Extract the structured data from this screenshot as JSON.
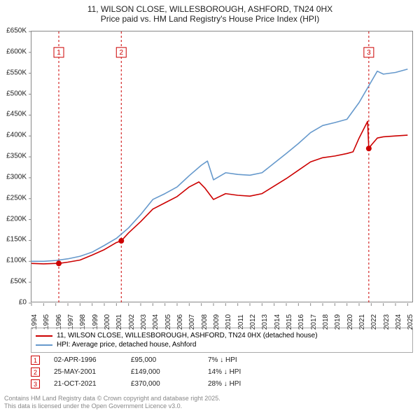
{
  "title": {
    "line1": "11, WILSON CLOSE, WILLESBOROUGH, ASHFORD, TN24 0HX",
    "line2": "Price paid vs. HM Land Registry's House Price Index (HPI)"
  },
  "chart": {
    "type": "line",
    "ylim": [
      0,
      650000
    ],
    "ytick_step": 50000,
    "yticks": [
      "£0",
      "£50K",
      "£100K",
      "£150K",
      "£200K",
      "£250K",
      "£300K",
      "£350K",
      "£400K",
      "£450K",
      "£500K",
      "£550K",
      "£600K",
      "£650K"
    ],
    "xlim": [
      1994,
      2025.5
    ],
    "xticks": [
      1994,
      1995,
      1996,
      1997,
      1998,
      1999,
      2000,
      2001,
      2002,
      2003,
      2004,
      2005,
      2006,
      2007,
      2008,
      2009,
      2010,
      2011,
      2012,
      2013,
      2014,
      2015,
      2016,
      2017,
      2018,
      2019,
      2020,
      2021,
      2022,
      2023,
      2024,
      2025
    ],
    "background_color": "#ffffff",
    "border_color": "#888888",
    "axis_font_size": 10,
    "series": [
      {
        "name": "price_paid",
        "label": "11, WILSON CLOSE, WILLESBOROUGH, ASHFORD, TN24 0HX (detached house)",
        "color": "#cc0000",
        "line_width": 1.6,
        "data": [
          [
            1994,
            95000
          ],
          [
            1995,
            94000
          ],
          [
            1996,
            95000
          ],
          [
            1996.25,
            95000
          ],
          [
            1997,
            98000
          ],
          [
            1998,
            103000
          ],
          [
            1999,
            115000
          ],
          [
            2000,
            128000
          ],
          [
            2001,
            145000
          ],
          [
            2001.4,
            149000
          ],
          [
            2002,
            168000
          ],
          [
            2003,
            195000
          ],
          [
            2004,
            225000
          ],
          [
            2005,
            240000
          ],
          [
            2006,
            255000
          ],
          [
            2007,
            278000
          ],
          [
            2007.8,
            290000
          ],
          [
            2008.3,
            275000
          ],
          [
            2009,
            248000
          ],
          [
            2010,
            262000
          ],
          [
            2011,
            258000
          ],
          [
            2012,
            256000
          ],
          [
            2013,
            262000
          ],
          [
            2014,
            280000
          ],
          [
            2015,
            298000
          ],
          [
            2016,
            318000
          ],
          [
            2017,
            338000
          ],
          [
            2018,
            348000
          ],
          [
            2019,
            352000
          ],
          [
            2020,
            358000
          ],
          [
            2020.5,
            362000
          ],
          [
            2021,
            395000
          ],
          [
            2021.7,
            435000
          ],
          [
            2021.8,
            370000
          ],
          [
            2022,
            378000
          ],
          [
            2022.5,
            395000
          ],
          [
            2023,
            398000
          ],
          [
            2024,
            400000
          ],
          [
            2025,
            402000
          ]
        ]
      },
      {
        "name": "hpi",
        "label": "HPI: Average price, detached house, Ashford",
        "color": "#6699cc",
        "line_width": 1.6,
        "data": [
          [
            1994,
            100000
          ],
          [
            1995,
            100000
          ],
          [
            1996,
            102000
          ],
          [
            1997,
            106000
          ],
          [
            1998,
            112000
          ],
          [
            1999,
            122000
          ],
          [
            2000,
            138000
          ],
          [
            2001,
            155000
          ],
          [
            2002,
            180000
          ],
          [
            2003,
            212000
          ],
          [
            2004,
            248000
          ],
          [
            2005,
            262000
          ],
          [
            2006,
            278000
          ],
          [
            2007,
            305000
          ],
          [
            2008,
            330000
          ],
          [
            2008.5,
            340000
          ],
          [
            2009,
            295000
          ],
          [
            2010,
            312000
          ],
          [
            2011,
            308000
          ],
          [
            2012,
            306000
          ],
          [
            2013,
            312000
          ],
          [
            2014,
            335000
          ],
          [
            2015,
            358000
          ],
          [
            2016,
            382000
          ],
          [
            2017,
            408000
          ],
          [
            2018,
            425000
          ],
          [
            2019,
            432000
          ],
          [
            2020,
            440000
          ],
          [
            2021,
            480000
          ],
          [
            2021.8,
            520000
          ],
          [
            2022,
            530000
          ],
          [
            2022.5,
            555000
          ],
          [
            2023,
            548000
          ],
          [
            2024,
            552000
          ],
          [
            2025,
            560000
          ]
        ]
      }
    ],
    "markers": [
      {
        "n": 1,
        "x": 1996.25,
        "y": 95000,
        "label_y": 600000
      },
      {
        "n": 2,
        "x": 2001.4,
        "y": 149000,
        "label_y": 600000
      },
      {
        "n": 3,
        "x": 2021.8,
        "y": 370000,
        "label_y": 600000
      }
    ],
    "marker_line_color": "#cc0000",
    "marker_dot_color": "#cc0000",
    "marker_box_border": "#cc0000",
    "marker_dash": "3,3"
  },
  "legend": {
    "items": [
      {
        "color": "#cc0000",
        "label": "11, WILSON CLOSE, WILLESBOROUGH, ASHFORD, TN24 0HX (detached house)"
      },
      {
        "color": "#6699cc",
        "label": "HPI: Average price, detached house, Ashford"
      }
    ]
  },
  "marker_table": [
    {
      "n": "1",
      "date": "02-APR-1996",
      "price": "£95,000",
      "pct": "7% ↓ HPI"
    },
    {
      "n": "2",
      "date": "25-MAY-2001",
      "price": "£149,000",
      "pct": "14% ↓ HPI"
    },
    {
      "n": "3",
      "date": "21-OCT-2021",
      "price": "£370,000",
      "pct": "28% ↓ HPI"
    }
  ],
  "footer": {
    "line1": "Contains HM Land Registry data © Crown copyright and database right 2025.",
    "line2": "This data is licensed under the Open Government Licence v3.0."
  }
}
